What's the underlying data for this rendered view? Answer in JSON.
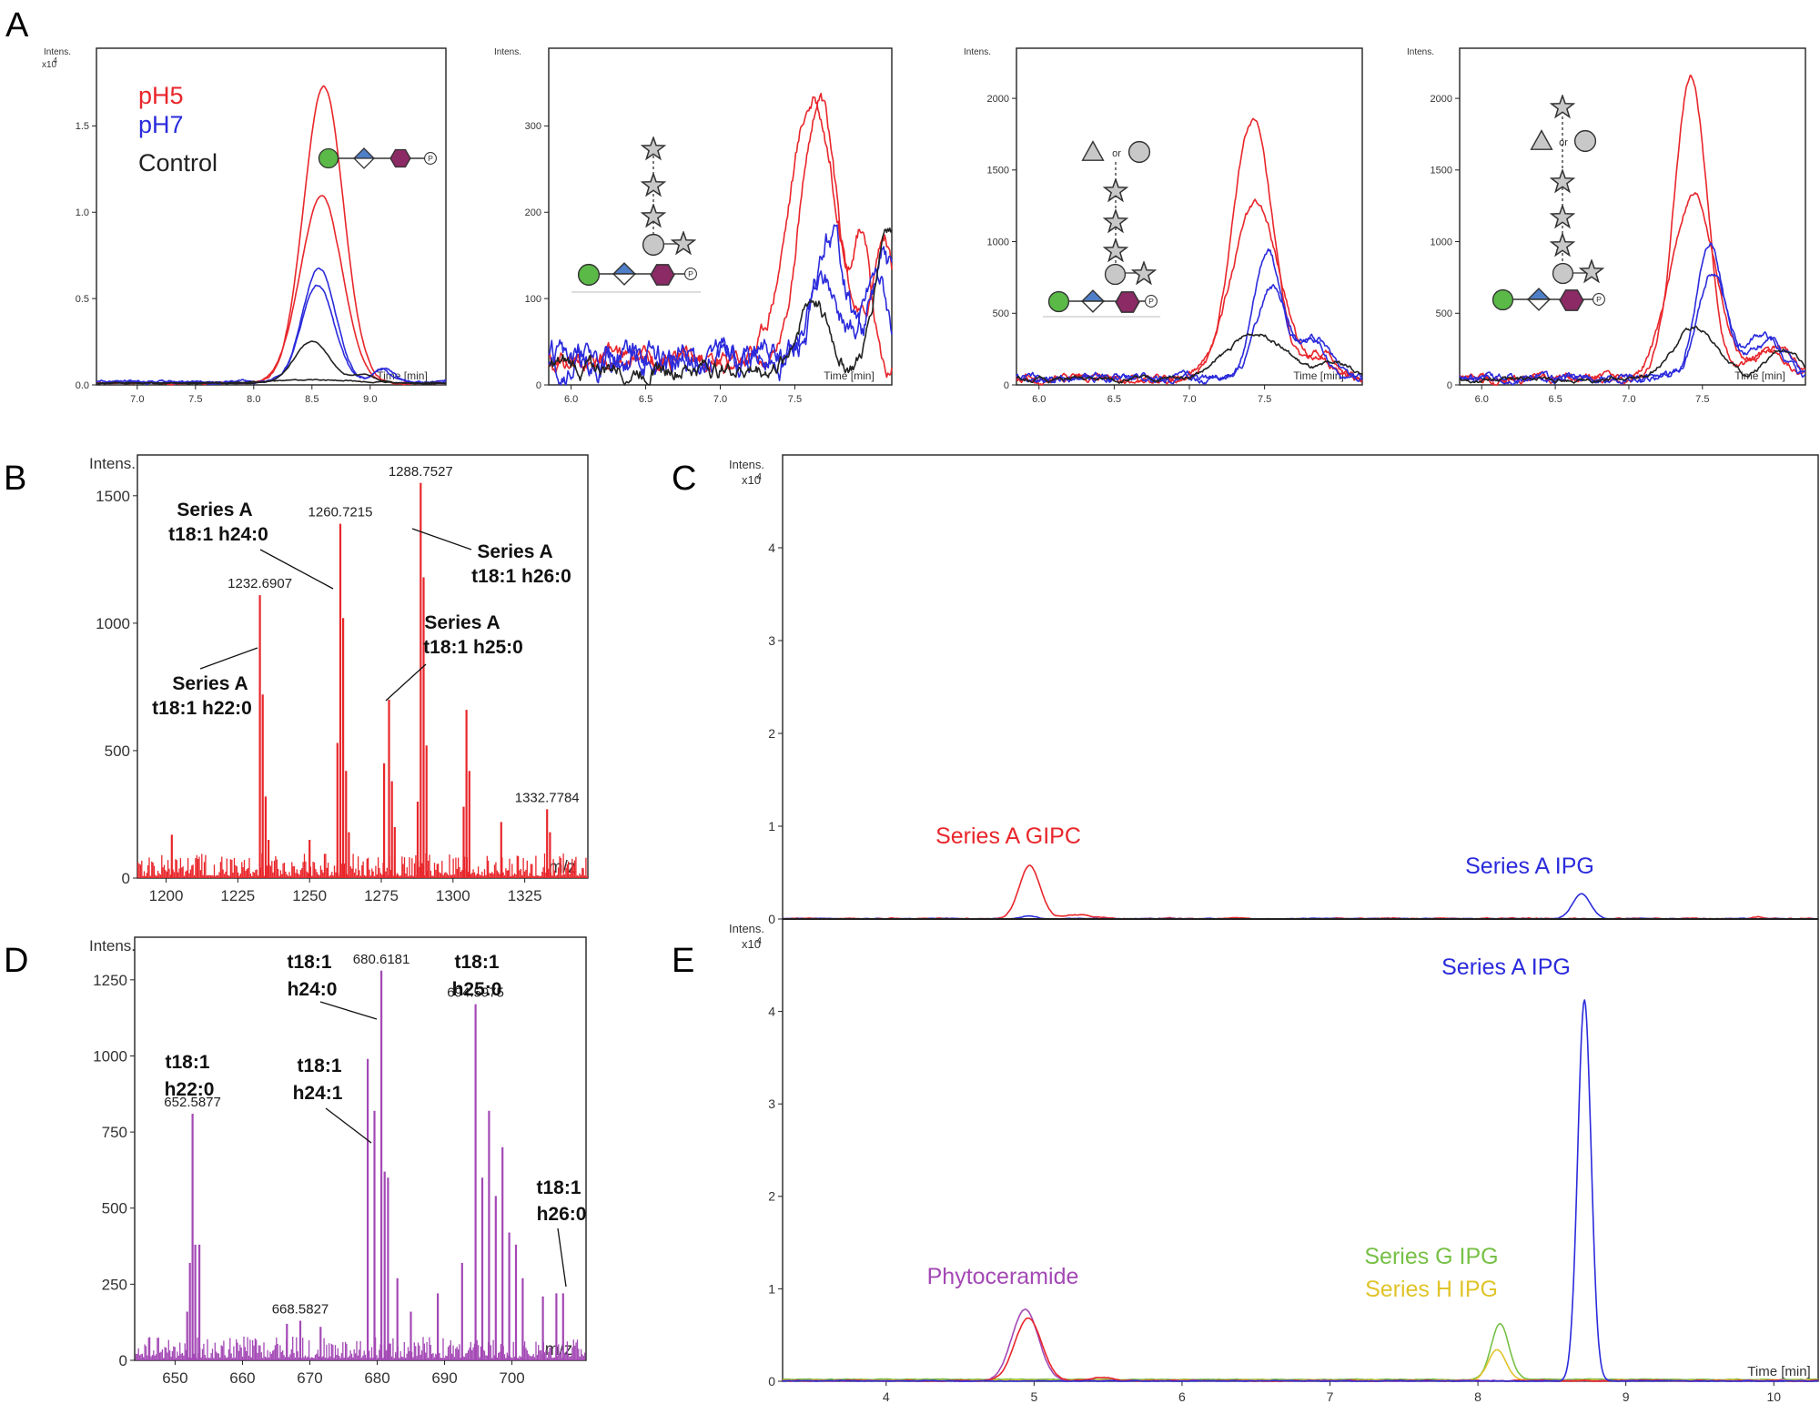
{
  "panel_letters": [
    "A",
    "B",
    "C",
    "D",
    "E"
  ],
  "colors": {
    "red": "#e8262b",
    "blue": "#2b2bdc",
    "black": "#222222",
    "purple": "#a348b5",
    "green": "#77c046",
    "yellow": "#e0c42a",
    "glycan_green": "#5ab947",
    "glycan_blue": "#4f7fc8",
    "glycan_purple": "#8b2a65",
    "glycan_grey": "#c8c8c8"
  },
  "chart_data": [
    {
      "id": "A1",
      "type": "line",
      "yaxis_title": "Intens.",
      "y_multiplier": "x10",
      "y_exponent": "4",
      "xlabel": "Time [min]",
      "xlim": [
        6.65,
        9.65
      ],
      "ylim": [
        0,
        1.95
      ],
      "xticks": [
        7.0,
        7.5,
        8.0,
        8.5,
        9.0
      ],
      "xtick_labels": [
        "7.0",
        "7.5",
        "8.0",
        "8.5",
        "9.0"
      ],
      "yticks": [
        0,
        0.5,
        1.0,
        1.5
      ],
      "ytick_labels": [
        "0.0",
        "0.5",
        "1.0",
        "1.5"
      ],
      "legend": [
        {
          "label": "pH5",
          "color": "red"
        },
        {
          "label": "pH7",
          "color": "blue"
        },
        {
          "label": "Control",
          "color": "black"
        }
      ],
      "glycan": "g1",
      "series": [
        {
          "name": "pH5",
          "color": "red",
          "baseline": 0.01,
          "noise": 0.003,
          "peaks": [
            [
              8.6,
              1.72,
              0.17
            ]
          ]
        },
        {
          "name": "pH5",
          "color": "red",
          "baseline": 0.01,
          "noise": 0.003,
          "peaks": [
            [
              8.58,
              1.08,
              0.18
            ]
          ]
        },
        {
          "name": "pH7",
          "color": "blue",
          "baseline": 0.02,
          "noise": 0.004,
          "peaks": [
            [
              8.56,
              0.66,
              0.14
            ],
            [
              9.12,
              0.08,
              0.08
            ]
          ]
        },
        {
          "name": "pH7",
          "color": "blue",
          "baseline": 0.015,
          "noise": 0.004,
          "peaks": [
            [
              8.55,
              0.56,
              0.14
            ],
            [
              9.1,
              0.07,
              0.08
            ]
          ]
        },
        {
          "name": "Control",
          "color": "black",
          "baseline": 0.01,
          "noise": 0.002,
          "peaks": [
            [
              8.5,
              0.24,
              0.15
            ],
            [
              8.95,
              0.05,
              0.1
            ]
          ]
        },
        {
          "name": "Control",
          "color": "black",
          "baseline": 0.01,
          "noise": 0.002,
          "peaks": [
            [
              8.5,
              0.02,
              0.3
            ]
          ]
        }
      ]
    },
    {
      "id": "A2",
      "type": "line",
      "yaxis_title": "Intens.",
      "xlabel": "Time [min]",
      "xlim": [
        5.85,
        8.15
      ],
      "ylim": [
        0,
        390
      ],
      "xticks": [
        6.0,
        6.5,
        7.0,
        7.5
      ],
      "xtick_labels": [
        "6.0",
        "6.5",
        "7.0",
        "7.5"
      ],
      "yticks": [
        0,
        100,
        200,
        300
      ],
      "ytick_labels": [
        "0",
        "100",
        "200",
        "300"
      ],
      "glycan": "g2",
      "series": [
        {
          "name": "pH5",
          "color": "red",
          "baseline": 30,
          "noise": 6,
          "peaks": [
            [
              7.62,
              300,
              0.16
            ],
            [
              8.1,
              140,
              0.07
            ]
          ]
        },
        {
          "name": "pH5",
          "color": "red",
          "baseline": 25,
          "noise": 6,
          "peaks": [
            [
              7.66,
              300,
              0.12
            ],
            [
              7.95,
              140,
              0.06
            ]
          ]
        },
        {
          "name": "pH7",
          "color": "blue",
          "baseline": 30,
          "noise": 10,
          "peaks": [
            [
              7.75,
              140,
              0.1
            ],
            [
              8.1,
              110,
              0.08
            ]
          ]
        },
        {
          "name": "pH7",
          "color": "blue",
          "baseline": 30,
          "noise": 9,
          "peaks": [
            [
              7.7,
              90,
              0.1
            ],
            [
              8.05,
              100,
              0.08
            ]
          ]
        },
        {
          "name": "Control",
          "color": "black",
          "baseline": 20,
          "noise": 6,
          "peaks": [
            [
              7.62,
              80,
              0.1
            ],
            [
              8.12,
              170,
              0.08
            ]
          ]
        }
      ]
    },
    {
      "id": "A3",
      "type": "line",
      "yaxis_title": "Intens.",
      "xlabel": "Time [min]",
      "xlim": [
        5.85,
        8.15
      ],
      "ylim": [
        0,
        2350
      ],
      "xticks": [
        6.0,
        6.5,
        7.0,
        7.5
      ],
      "xtick_labels": [
        "6.0",
        "6.5",
        "7.0",
        "7.5"
      ],
      "yticks": [
        0,
        500,
        1000,
        1500,
        2000
      ],
      "ytick_labels": [
        "0",
        "500",
        "1000",
        "1500",
        "2000"
      ],
      "glycan": "g3",
      "series": [
        {
          "name": "pH5",
          "color": "red",
          "baseline": 50,
          "noise": 15,
          "peaks": [
            [
              7.42,
              1800,
              0.13
            ],
            [
              7.85,
              150,
              0.08
            ]
          ]
        },
        {
          "name": "pH5",
          "color": "red",
          "baseline": 50,
          "noise": 15,
          "peaks": [
            [
              7.44,
              1200,
              0.16
            ],
            [
              7.9,
              150,
              0.08
            ]
          ]
        },
        {
          "name": "pH7",
          "color": "blue",
          "baseline": 50,
          "noise": 15,
          "peaks": [
            [
              7.52,
              870,
              0.09
            ],
            [
              7.8,
              300,
              0.1
            ]
          ]
        },
        {
          "name": "pH7",
          "color": "blue",
          "baseline": 50,
          "noise": 15,
          "peaks": [
            [
              7.55,
              640,
              0.1
            ],
            [
              7.85,
              250,
              0.1
            ]
          ]
        },
        {
          "name": "Control",
          "color": "black",
          "baseline": 40,
          "noise": 10,
          "peaks": [
            [
              7.45,
              320,
              0.2
            ],
            [
              8.0,
              100,
              0.1
            ]
          ]
        }
      ]
    },
    {
      "id": "A4",
      "type": "line",
      "yaxis_title": "Intens.",
      "xlabel": "Time [min]",
      "xlim": [
        5.85,
        8.2
      ],
      "ylim": [
        0,
        2350
      ],
      "xticks": [
        6.0,
        6.5,
        7.0,
        7.5
      ],
      "xtick_labels": [
        "6.0",
        "6.5",
        "7.0",
        "7.5"
      ],
      "yticks": [
        0,
        500,
        1000,
        1500,
        2000
      ],
      "ytick_labels": [
        "0",
        "500",
        "1000",
        "1500",
        "2000"
      ],
      "glycan": "g4",
      "series": [
        {
          "name": "pH5",
          "color": "red",
          "baseline": 50,
          "noise": 15,
          "peaks": [
            [
              7.42,
              2100,
              0.11
            ],
            [
              7.95,
              200,
              0.12
            ]
          ]
        },
        {
          "name": "pH5",
          "color": "red",
          "baseline": 50,
          "noise": 15,
          "peaks": [
            [
              7.44,
              1280,
              0.15
            ],
            [
              8.0,
              220,
              0.12
            ]
          ]
        },
        {
          "name": "pH7",
          "color": "blue",
          "baseline": 50,
          "noise": 15,
          "peaks": [
            [
              7.55,
              950,
              0.09
            ],
            [
              7.9,
              300,
              0.12
            ]
          ]
        },
        {
          "name": "pH7",
          "color": "blue",
          "baseline": 50,
          "noise": 15,
          "peaks": [
            [
              7.57,
              740,
              0.1
            ],
            [
              7.95,
              250,
              0.12
            ]
          ]
        },
        {
          "name": "Control",
          "color": "black",
          "baseline": 40,
          "noise": 10,
          "peaks": [
            [
              7.45,
              360,
              0.15
            ],
            [
              8.05,
              200,
              0.12
            ]
          ]
        }
      ]
    },
    {
      "id": "B",
      "type": "bar",
      "yaxis_title": "Intens.",
      "xlabel": "m/z",
      "xlim": [
        1190,
        1347
      ],
      "ylim": [
        0,
        1660
      ],
      "xticks": [
        1200,
        1225,
        1250,
        1275,
        1300,
        1325
      ],
      "xtick_labels": [
        "1200",
        "1225",
        "1250",
        "1275",
        "1300",
        "1325"
      ],
      "yticks": [
        0,
        500,
        1000,
        1500
      ],
      "ytick_labels": [
        "0",
        "500",
        "1000",
        "1500"
      ],
      "color": "red",
      "noise_level": 90,
      "peaks": [
        [
          1232.69,
          1110
        ],
        [
          1233.69,
          720
        ],
        [
          1234.69,
          320
        ],
        [
          1235.7,
          150
        ],
        [
          1260.72,
          1390
        ],
        [
          1261.72,
          1020
        ],
        [
          1262.72,
          420
        ],
        [
          1259.7,
          530
        ],
        [
          1263.7,
          180
        ],
        [
          1276.0,
          450
        ],
        [
          1277.7,
          700
        ],
        [
          1278.7,
          380
        ],
        [
          1279.7,
          200
        ],
        [
          1288.75,
          1550
        ],
        [
          1289.75,
          1180
        ],
        [
          1290.75,
          520
        ],
        [
          1287.7,
          300
        ],
        [
          1304.7,
          660
        ],
        [
          1305.7,
          420
        ],
        [
          1303.7,
          280
        ],
        [
          1316.8,
          220
        ],
        [
          1332.78,
          270
        ],
        [
          1333.8,
          180
        ],
        [
          1202.0,
          170
        ],
        [
          1250.0,
          150
        ]
      ],
      "peak_labels": [
        {
          "text": "1232.6907",
          "x": 1232.69,
          "y": 1110
        },
        {
          "text": "1260.7215",
          "x": 1260.72,
          "y": 1390
        },
        {
          "text": "1288.7527",
          "x": 1288.75,
          "y": 1550
        },
        {
          "text": "1332.7784",
          "x": 1332.78,
          "y": 270
        }
      ],
      "annotations": [
        {
          "lines": [
            "Series A",
            "t18:1 h22:0"
          ]
        },
        {
          "lines": [
            "Series A",
            "t18:1 h24:0"
          ]
        },
        {
          "lines": [
            "Series A",
            "t18:1 h25:0"
          ]
        },
        {
          "lines": [
            "Series A",
            "t18:1 h26:0"
          ]
        }
      ]
    },
    {
      "id": "C",
      "type": "line",
      "yaxis_title": "Intens.",
      "y_multiplier": "x10",
      "y_exponent": "4",
      "xlim": [
        3.3,
        10.3
      ],
      "ylim": [
        0,
        5
      ],
      "yticks": [
        0,
        1,
        2,
        3,
        4
      ],
      "ytick_labels": [
        "0",
        "1",
        "2",
        "3",
        "4"
      ],
      "annotations": [
        {
          "text": "Series A GIPC",
          "color": "red"
        },
        {
          "text": "Series A IPG",
          "color": "blue"
        }
      ],
      "series": [
        {
          "name": "Series A GIPC",
          "color": "red",
          "baseline": 0.005,
          "noise": 0.003,
          "peaks": [
            [
              4.97,
              0.57,
              0.07
            ],
            [
              5.3,
              0.04,
              0.1
            ],
            [
              9.9,
              0.02,
              0.03
            ]
          ]
        },
        {
          "name": "Series A IPG",
          "color": "blue",
          "baseline": 0.003,
          "noise": 0.002,
          "peaks": [
            [
              8.7,
              0.27,
              0.06
            ],
            [
              4.97,
              0.03,
              0.05
            ]
          ]
        }
      ]
    },
    {
      "id": "D",
      "type": "bar",
      "yaxis_title": "Intens.",
      "xlabel": "m/z",
      "xlim": [
        644,
        711
      ],
      "ylim": [
        0,
        1390
      ],
      "xticks": [
        650,
        660,
        670,
        680,
        690,
        700
      ],
      "xtick_labels": [
        "650",
        "660",
        "670",
        "680",
        "690",
        "700"
      ],
      "yticks": [
        0,
        250,
        500,
        750,
        1000,
        1250
      ],
      "ytick_labels": [
        "0",
        "250",
        "500",
        "750",
        "1000",
        "1250"
      ],
      "color": "purple",
      "noise_level": 70,
      "peaks": [
        [
          652.59,
          810
        ],
        [
          653.0,
          380
        ],
        [
          652.2,
          320
        ],
        [
          653.6,
          380
        ],
        [
          651.8,
          160
        ],
        [
          678.6,
          990
        ],
        [
          680.62,
          1280
        ],
        [
          681.1,
          620
        ],
        [
          679.6,
          820
        ],
        [
          681.6,
          600
        ],
        [
          683.0,
          270
        ],
        [
          694.6,
          1170
        ],
        [
          695.6,
          600
        ],
        [
          696.6,
          820
        ],
        [
          697.6,
          540
        ],
        [
          698.6,
          700
        ],
        [
          699.6,
          420
        ],
        [
          700.6,
          380
        ],
        [
          692.6,
          320
        ],
        [
          701.6,
          270
        ],
        [
          704.6,
          210
        ],
        [
          706.6,
          220
        ],
        [
          707.6,
          220
        ],
        [
          668.58,
          130
        ],
        [
          666.6,
          120
        ],
        [
          671.6,
          110
        ],
        [
          689.0,
          220
        ],
        [
          685.0,
          160
        ]
      ],
      "peak_labels": [
        {
          "text": "652.5877",
          "x": 652.59,
          "y": 810
        },
        {
          "text": "668.5827",
          "x": 668.58,
          "y": 130
        },
        {
          "text": "680.6181",
          "x": 680.62,
          "y": 1280
        },
        {
          "text": "694.5975",
          "x": 694.6,
          "y": 1170
        }
      ],
      "annotations": [
        {
          "lines": [
            "t18:1",
            "h22:0"
          ]
        },
        {
          "lines": [
            "t18:1",
            "h24:1"
          ]
        },
        {
          "lines": [
            "t18:1",
            "h24:0"
          ]
        },
        {
          "lines": [
            "t18:1",
            "h25:0"
          ]
        },
        {
          "lines": [
            "t18:1",
            "h26:0"
          ]
        }
      ]
    },
    {
      "id": "E",
      "type": "line",
      "yaxis_title": "Intens.",
      "y_multiplier": "x10",
      "y_exponent": "4",
      "xlabel": "Time [min]",
      "xlim": [
        3.3,
        10.3
      ],
      "ylim": [
        0,
        5
      ],
      "xticks": [
        4,
        5,
        6,
        7,
        8,
        9,
        10
      ],
      "xtick_labels": [
        "4",
        "5",
        "6",
        "7",
        "8",
        "9",
        "10"
      ],
      "yticks": [
        0,
        1,
        2,
        3,
        4
      ],
      "ytick_labels": [
        "0",
        "1",
        "2",
        "3",
        "4"
      ],
      "annotations": [
        {
          "text": "Series A IPG",
          "color": "blue"
        },
        {
          "text": "Phytoceramide",
          "color": "purple"
        },
        {
          "text": "Series G IPG",
          "color": "green"
        },
        {
          "text": "Series H IPG",
          "color": "yellow"
        }
      ],
      "series": [
        {
          "name": "Series G IPG",
          "color": "green",
          "baseline": 0.02,
          "noise": 0.002,
          "peaks": [
            [
              8.15,
              0.6,
              0.06
            ]
          ]
        },
        {
          "name": "Series H IPG",
          "color": "yellow",
          "baseline": 0.01,
          "noise": 0.002,
          "peaks": [
            [
              8.13,
              0.33,
              0.06
            ]
          ]
        },
        {
          "name": "Phytoceramide",
          "color": "purple",
          "baseline": 0.005,
          "noise": 0.003,
          "peaks": [
            [
              4.94,
              0.77,
              0.09
            ]
          ]
        },
        {
          "name": "Phytoceramide",
          "color": "red",
          "baseline": 0.005,
          "noise": 0.003,
          "peaks": [
            [
              4.96,
              0.68,
              0.09
            ],
            [
              5.45,
              0.04,
              0.08
            ]
          ]
        },
        {
          "name": "Series A IPG",
          "color": "blue",
          "baseline": 0.003,
          "noise": 0.002,
          "peaks": [
            [
              8.72,
              4.12,
              0.045
            ]
          ]
        }
      ]
    }
  ]
}
